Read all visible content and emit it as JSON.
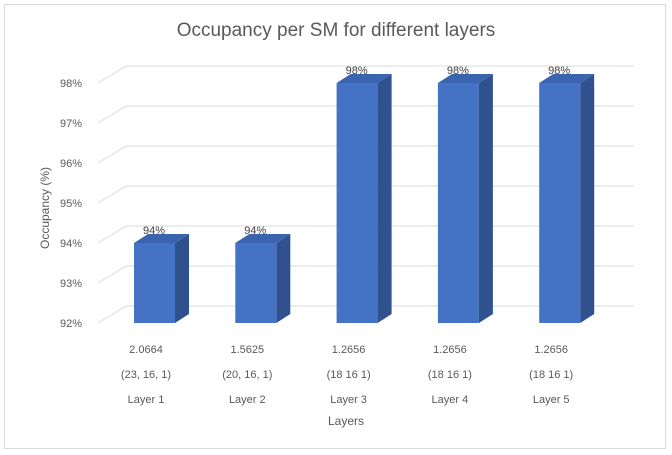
{
  "chart_data": {
    "type": "bar",
    "title": "Occupancy per SM for different layers",
    "xlabel": "Layers",
    "ylabel": "Occupancy (%)",
    "ylim": [
      92,
      98
    ],
    "yticks": [
      "92%",
      "93%",
      "94%",
      "95%",
      "96%",
      "97%",
      "98%"
    ],
    "grid": true,
    "categories": [
      [
        "2.0664",
        "(23, 16, 1)",
        "Layer 1"
      ],
      [
        "1.5625",
        "(20, 16, 1)",
        "Layer 2"
      ],
      [
        "1.2656",
        "(18 16 1)",
        "Layer 3"
      ],
      [
        "1.2656",
        "(18 16 1)",
        "Layer 4"
      ],
      [
        "1.2656",
        "(18 16 1)",
        "Layer 5"
      ]
    ],
    "values": [
      94,
      94,
      98,
      98,
      98
    ],
    "data_labels": [
      "94%",
      "94%",
      "98%",
      "98%",
      "98%"
    ],
    "colors": {
      "front": "#4472c4",
      "side": "#2f528f",
      "top": "#3a64b0",
      "grid": "#d9d9d9"
    }
  }
}
